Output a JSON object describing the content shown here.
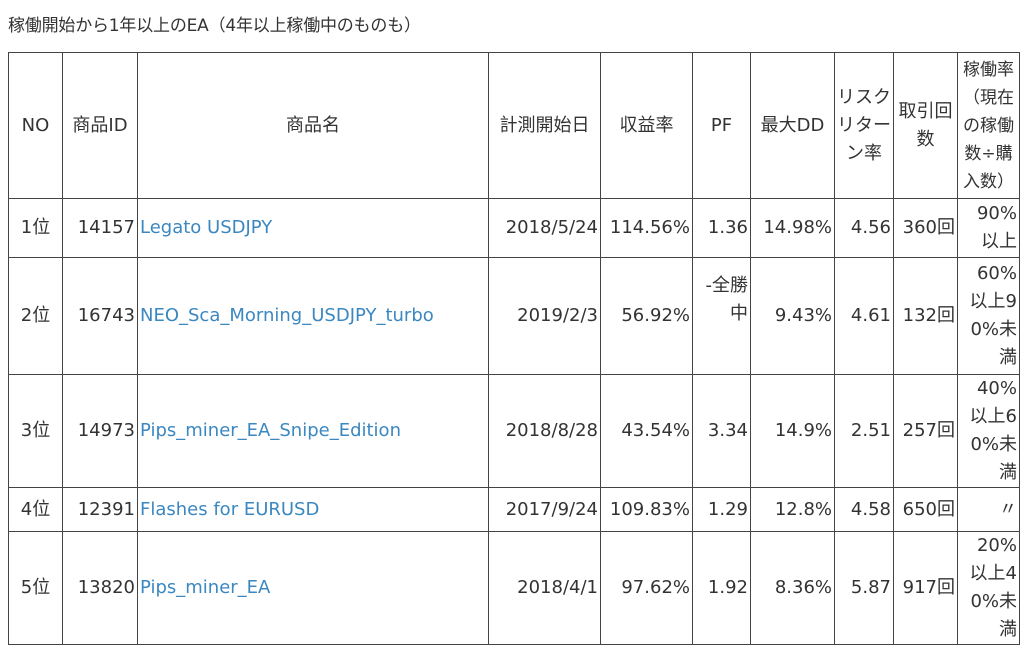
{
  "caption": "稼働開始から1年以上のEA（4年以上稼働中のものも）",
  "headers": {
    "no": "NO",
    "product_id": "商品ID",
    "product_name": "商品名",
    "start_date": "計測開始日",
    "profit_rate": "収益率",
    "pf": "PF",
    "max_dd": "最大DD",
    "risk_return": "リスクリターン率",
    "trades": "取引回数",
    "operation_rate": "稼働率（現在の稼働数÷購入数）"
  },
  "rows": [
    {
      "rank": "1位",
      "id": "14157",
      "name": "Legato USDJPY",
      "date": "2018/5/24",
      "profit": "114.56%",
      "pf": "1.36",
      "dd": "14.98%",
      "rr": "4.56",
      "trades": "360回",
      "op": "90%以上"
    },
    {
      "rank": "2位",
      "id": "16743",
      "name": "NEO_Sca_Morning_USDJPY_turbo",
      "date": "2019/2/3",
      "profit": "56.92%",
      "pf": "-全勝中",
      "dd": "9.43%",
      "rr": "4.61",
      "trades": "132回",
      "op": "60%以上90%未満"
    },
    {
      "rank": "3位",
      "id": "14973",
      "name": "Pips_miner_EA_Snipe_Edition",
      "date": "2018/8/28",
      "profit": "43.54%",
      "pf": "3.34",
      "dd": "14.9%",
      "rr": "2.51",
      "trades": "257回",
      "op": "40%以上60%未満"
    },
    {
      "rank": "4位",
      "id": "12391",
      "name": "Flashes for EURUSD",
      "date": "2017/9/24",
      "profit": "109.83%",
      "pf": "1.29",
      "dd": "12.8%",
      "rr": "4.58",
      "trades": "650回",
      "op": "〃"
    },
    {
      "rank": "5位",
      "id": "13820",
      "name": "Pips_miner_EA",
      "date": "2018/4/1",
      "profit": "97.62%",
      "pf": "1.92",
      "dd": "8.36%",
      "rr": "5.87",
      "trades": "917回",
      "op": "20%以上40%未満"
    }
  ]
}
